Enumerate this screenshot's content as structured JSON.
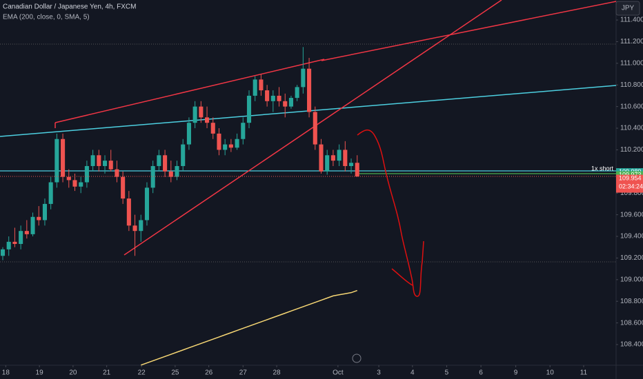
{
  "chart_data": {
    "type": "candlestick",
    "title": "Canadian Dollar / Japanese Yen, 4h, FXCM",
    "subtitle": "EMA (200, close, 0, SMA, 5)",
    "currency": "JPY",
    "up_color": "#26a69a",
    "down_color": "#ef5350",
    "ema_color": "#f7d774",
    "grid": false,
    "ylim": [
      108.209,
      111.585
    ],
    "yticks": [
      {
        "value": 108.4,
        "label": "108.400"
      },
      {
        "value": 108.6,
        "label": "108.600"
      },
      {
        "value": 108.8,
        "label": "108.800"
      },
      {
        "value": 109.0,
        "label": "109.000"
      },
      {
        "value": 109.2,
        "label": "109.200"
      },
      {
        "value": 109.4,
        "label": "109.400"
      },
      {
        "value": 109.6,
        "label": "109.600"
      },
      {
        "value": 109.8,
        "label": "109.800"
      },
      {
        "value": 110.0,
        "label": "110.000"
      },
      {
        "value": 110.2,
        "label": "110.200"
      },
      {
        "value": 110.4,
        "label": "110.400"
      },
      {
        "value": 110.6,
        "label": "110.600"
      },
      {
        "value": 110.8,
        "label": "110.800"
      },
      {
        "value": 111.0,
        "label": "111.000"
      },
      {
        "value": 111.2,
        "label": "111.200"
      },
      {
        "value": 111.4,
        "label": "111.400"
      }
    ],
    "xlim": [
      -0.46,
      102.1
    ],
    "xticks": [
      {
        "value": 0.5,
        "label": "18"
      },
      {
        "value": 6.1,
        "label": "19"
      },
      {
        "value": 11.7,
        "label": "20"
      },
      {
        "value": 17.3,
        "label": "21"
      },
      {
        "value": 23.1,
        "label": "22"
      },
      {
        "value": 28.7,
        "label": "25"
      },
      {
        "value": 34.3,
        "label": "26"
      },
      {
        "value": 40.0,
        "label": "27"
      },
      {
        "value": 45.6,
        "label": "28"
      },
      {
        "value": 55.8,
        "label": "Oct"
      },
      {
        "value": 62.6,
        "label": "3"
      },
      {
        "value": 68.2,
        "label": "4"
      },
      {
        "value": 73.9,
        "label": "5"
      },
      {
        "value": 79.6,
        "label": "6"
      },
      {
        "value": 85.4,
        "label": "9"
      },
      {
        "value": 91.1,
        "label": "10"
      },
      {
        "value": 96.7,
        "label": "11"
      }
    ],
    "ohlc": [
      [
        109.22,
        109.3,
        109.18,
        109.28
      ],
      [
        109.28,
        109.4,
        109.22,
        109.35
      ],
      [
        109.35,
        109.48,
        109.3,
        109.33
      ],
      [
        109.33,
        109.5,
        109.28,
        109.45
      ],
      [
        109.45,
        109.55,
        109.38,
        109.42
      ],
      [
        109.42,
        109.62,
        109.4,
        109.58
      ],
      [
        109.58,
        109.68,
        109.5,
        109.55
      ],
      [
        109.55,
        109.75,
        109.5,
        109.7
      ],
      [
        109.7,
        109.95,
        109.65,
        109.9
      ],
      [
        109.9,
        110.35,
        109.85,
        110.3
      ],
      [
        110.3,
        110.35,
        109.9,
        109.95
      ],
      [
        109.95,
        110.02,
        109.85,
        109.92
      ],
      [
        109.92,
        109.98,
        109.82,
        109.86
      ],
      [
        109.86,
        109.95,
        109.8,
        109.9
      ],
      [
        109.9,
        110.1,
        109.85,
        110.05
      ],
      [
        110.05,
        110.2,
        110.0,
        110.15
      ],
      [
        110.15,
        110.2,
        110.0,
        110.05
      ],
      [
        110.05,
        110.15,
        109.98,
        110.1
      ],
      [
        110.1,
        110.2,
        110.0,
        110.02
      ],
      [
        110.02,
        110.1,
        109.9,
        109.95
      ],
      [
        109.95,
        110.0,
        109.7,
        109.75
      ],
      [
        109.75,
        109.82,
        109.45,
        109.5
      ],
      [
        109.5,
        109.6,
        109.22,
        109.45
      ],
      [
        109.45,
        109.6,
        109.35,
        109.55
      ],
      [
        109.55,
        109.9,
        109.5,
        109.85
      ],
      [
        109.85,
        110.1,
        109.8,
        110.05
      ],
      [
        110.05,
        110.2,
        110.0,
        110.15
      ],
      [
        110.15,
        110.2,
        109.95,
        110.0
      ],
      [
        110.0,
        110.1,
        109.9,
        109.95
      ],
      [
        109.95,
        110.1,
        109.92,
        110.05
      ],
      [
        110.05,
        110.3,
        110.0,
        110.25
      ],
      [
        110.25,
        110.5,
        110.2,
        110.45
      ],
      [
        110.45,
        110.65,
        110.4,
        110.6
      ],
      [
        110.6,
        110.65,
        110.45,
        110.5
      ],
      [
        110.5,
        110.6,
        110.4,
        110.45
      ],
      [
        110.45,
        110.5,
        110.3,
        110.35
      ],
      [
        110.35,
        110.4,
        110.15,
        110.2
      ],
      [
        110.2,
        110.3,
        110.15,
        110.25
      ],
      [
        110.25,
        110.3,
        110.18,
        110.22
      ],
      [
        110.22,
        110.35,
        110.2,
        110.3
      ],
      [
        110.3,
        110.5,
        110.25,
        110.45
      ],
      [
        110.45,
        110.75,
        110.4,
        110.7
      ],
      [
        110.7,
        110.88,
        110.65,
        110.85
      ],
      [
        110.85,
        110.9,
        110.7,
        110.75
      ],
      [
        110.75,
        110.8,
        110.6,
        110.65
      ],
      [
        110.65,
        110.75,
        110.55,
        110.7
      ],
      [
        110.7,
        110.78,
        110.6,
        110.65
      ],
      [
        110.65,
        110.72,
        110.5,
        110.6
      ],
      [
        110.6,
        110.7,
        110.58,
        110.68
      ],
      [
        110.68,
        110.8,
        110.65,
        110.78
      ],
      [
        110.78,
        111.15,
        110.72,
        110.95
      ],
      [
        110.95,
        111.05,
        110.5,
        110.55
      ],
      [
        110.55,
        110.6,
        110.2,
        110.25
      ],
      [
        110.25,
        110.3,
        109.98,
        110.0
      ],
      [
        110.0,
        110.2,
        109.97,
        110.15
      ],
      [
        110.15,
        110.2,
        110.05,
        110.1
      ],
      [
        110.1,
        110.25,
        110.05,
        110.2
      ],
      [
        110.2,
        110.28,
        110.0,
        110.05
      ],
      [
        110.05,
        110.12,
        109.98,
        110.08
      ],
      [
        110.08,
        110.15,
        109.95,
        109.954
      ]
    ],
    "ema": [
      null,
      null,
      null,
      null,
      null,
      null,
      null,
      null,
      null,
      null,
      null,
      null,
      null,
      null,
      null,
      null,
      null,
      null,
      null,
      null,
      null,
      null,
      null,
      108.21,
      108.23,
      108.25,
      108.27,
      108.29,
      108.31,
      108.33,
      108.35,
      108.37,
      108.39,
      108.41,
      108.43,
      108.45,
      108.47,
      108.49,
      108.51,
      108.53,
      108.55,
      108.57,
      108.59,
      108.61,
      108.63,
      108.65,
      108.67,
      108.69,
      108.71,
      108.73,
      108.75,
      108.77,
      108.79,
      108.81,
      108.83,
      108.85,
      108.86,
      108.87,
      108.88,
      108.9
    ],
    "position_label": "1x short",
    "price_labels": [
      {
        "value": 109.989,
        "label": "109.989",
        "color": "#26a69a"
      },
      {
        "value": 109.973,
        "label": "109.973",
        "color": "#4caf50"
      },
      {
        "value": 109.954,
        "label": "109.954",
        "color": "#ef5350"
      }
    ],
    "countdown": "02:34:24"
  }
}
